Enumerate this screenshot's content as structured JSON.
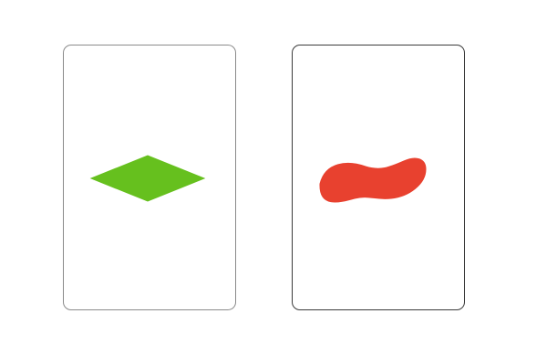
{
  "cards": [
    {
      "id": "card-1",
      "shape": "diamond-icon",
      "color": "#66c01e",
      "count": 1,
      "fill": "solid",
      "selected": false
    },
    {
      "id": "card-2",
      "shape": "squiggle-icon",
      "color": "#e8412f",
      "count": 1,
      "fill": "solid",
      "selected": false
    }
  ]
}
